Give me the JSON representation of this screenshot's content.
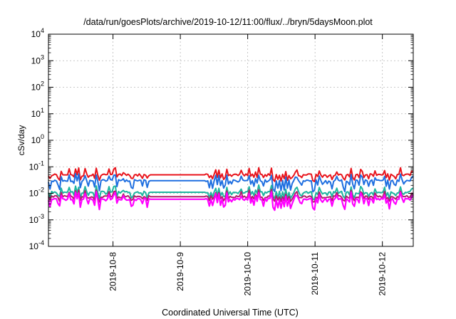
{
  "chart_data": {
    "type": "line",
    "title": "/data/run/goesPlots/archive/2019-10-12/11:00/flux/../bryn/5daysMoon.plot",
    "xlabel": "Coordinated Universal Time (UTC)",
    "ylabel": "cSv/day",
    "yscale": "log",
    "ylim_exp": [
      -4,
      4
    ],
    "y_ticks": [
      {
        "base": "10",
        "exp": "-4"
      },
      {
        "base": "10",
        "exp": "-3"
      },
      {
        "base": "10",
        "exp": "-2"
      },
      {
        "base": "10",
        "exp": "-1"
      },
      {
        "base": "10",
        "exp": "0"
      },
      {
        "base": "10",
        "exp": "1"
      },
      {
        "base": "10",
        "exp": "2"
      },
      {
        "base": "10",
        "exp": "3"
      },
      {
        "base": "10",
        "exp": "4"
      }
    ],
    "x_range_days": [
      "2019-10-07T01:00",
      "2019-10-12T11:00"
    ],
    "x_ticks": [
      "2019-10-8",
      "2019-10-9",
      "2019-10-10",
      "2019-10-11",
      "2019-10-12"
    ],
    "grid": true,
    "legend": "none",
    "series": [
      {
        "color": "#e8141c",
        "baseline": 0.05,
        "flat_segments": [
          [
            "2019-10-08T13:00",
            "2019-10-09T09:00",
            0.05
          ]
        ],
        "dip_min": 0.03
      },
      {
        "color": "#1f6fe0",
        "baseline": 0.03,
        "flat_segments": [
          [
            "2019-10-08T13:00",
            "2019-10-09T09:00",
            0.03
          ]
        ],
        "dip_min": 0.012
      },
      {
        "color": "#1fb5a0",
        "baseline": 0.011,
        "flat_segments": [
          [
            "2019-10-08T13:00",
            "2019-10-09T09:00",
            0.011
          ]
        ],
        "dip_min": 0.006
      },
      {
        "color": "#b0206b",
        "baseline": 0.0075,
        "flat_segments": [
          [
            "2019-10-08T13:00",
            "2019-10-09T09:00",
            0.0075
          ]
        ],
        "dip_min": 0.005
      },
      {
        "color": "#ff00ff",
        "baseline": 0.006,
        "flat_segments": [
          [
            "2019-10-08T13:00",
            "2019-10-09T09:00",
            0.006
          ]
        ],
        "dip_min": 0.0025
      }
    ]
  }
}
